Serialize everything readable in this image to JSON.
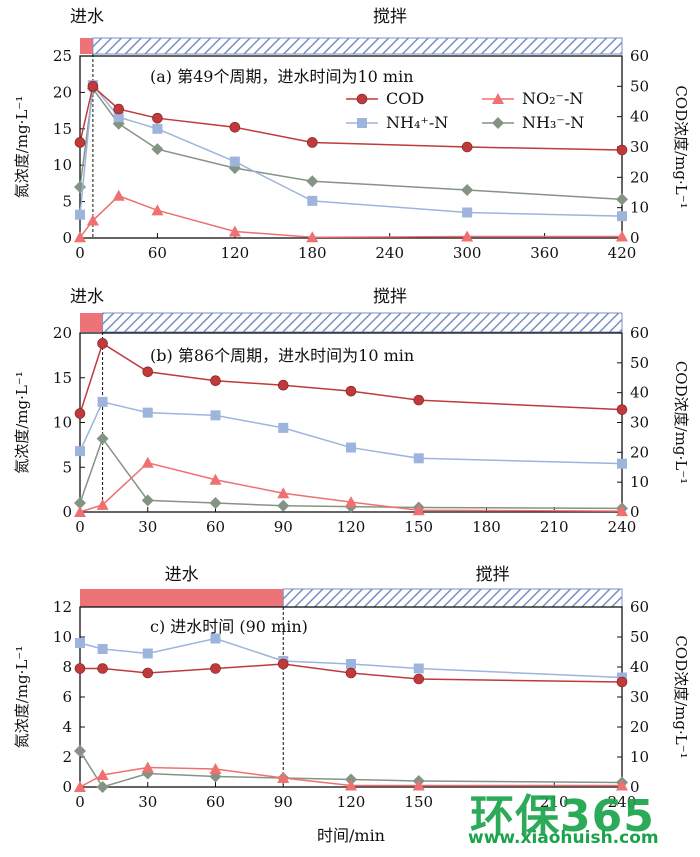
{
  "chart_data": [
    {
      "type": "line",
      "title": "(a) 第49个周期，进水时间为10 min",
      "phase_labels": {
        "fill": "进水",
        "stir": "搅拌"
      },
      "fill_end": 10,
      "xlim": [
        0,
        420
      ],
      "xticks": [
        0,
        60,
        120,
        180,
        240,
        300,
        360,
        420
      ],
      "ylim_left": [
        0,
        25
      ],
      "yticks_left": [
        0,
        5,
        10,
        15,
        20,
        25
      ],
      "ylim_right": [
        0,
        60
      ],
      "yticks_right": [
        0,
        10,
        20,
        30,
        40,
        50,
        60
      ],
      "ylabel_left": "氮浓度/mg·L⁻¹",
      "ylabel_right": "COD浓度/mg·L⁻¹",
      "legend": {
        "placement": "upper-right",
        "items": [
          {
            "series": "COD",
            "label": "COD"
          },
          {
            "series": "NO2",
            "label": "NO₂⁻-N"
          },
          {
            "series": "NH4",
            "label": "NH₄⁺-N"
          },
          {
            "series": "NH3",
            "label": "NH₃⁻-N"
          }
        ]
      },
      "series": [
        {
          "name": "COD",
          "axis": "right",
          "color": "#c0393b",
          "marker": "circle",
          "x": [
            0,
            10,
            30,
            60,
            120,
            180,
            300,
            420
          ],
          "values": [
            31.5,
            50,
            42.5,
            39.5,
            36.5,
            31.5,
            30,
            29
          ]
        },
        {
          "name": "NH₄⁺-N",
          "axis": "left",
          "color": "#9db4dc",
          "marker": "square",
          "x": [
            0,
            10,
            30,
            60,
            120,
            180,
            300,
            420
          ],
          "values": [
            3.2,
            21,
            16.6,
            15,
            10.5,
            5.1,
            3.5,
            3.0
          ]
        },
        {
          "name": "NO₂⁻-N",
          "axis": "left",
          "color": "#ee7070",
          "marker": "triangle",
          "x": [
            0,
            10,
            30,
            60,
            120,
            180,
            300,
            420
          ],
          "values": [
            0.1,
            2.4,
            5.8,
            3.8,
            0.9,
            0.1,
            0.2,
            0.2
          ]
        },
        {
          "name": "NH₃⁻-N",
          "axis": "left",
          "color": "#849484",
          "marker": "diamond",
          "x": [
            0,
            10,
            30,
            60,
            120,
            180,
            300,
            420
          ],
          "values": [
            7.0,
            20.5,
            15.7,
            12.2,
            9.6,
            7.8,
            6.6,
            5.3
          ]
        }
      ]
    },
    {
      "type": "line",
      "title": "(b) 第86个周期，进水时间为10 min",
      "phase_labels": {
        "fill": "进水",
        "stir": "搅拌"
      },
      "fill_end": 10,
      "xlim": [
        0,
        240
      ],
      "xticks": [
        0,
        30,
        60,
        90,
        120,
        150,
        180,
        210,
        240
      ],
      "ylim_left": [
        0,
        20
      ],
      "yticks_left": [
        0,
        5,
        10,
        15,
        20
      ],
      "ylim_right": [
        0,
        60
      ],
      "yticks_right": [
        0,
        10,
        20,
        30,
        40,
        50,
        60
      ],
      "ylabel_left": "氮浓度/mg·L⁻¹",
      "ylabel_right": "COD浓度/mg·L⁻¹",
      "series": [
        {
          "name": "COD",
          "axis": "right",
          "color": "#c0393b",
          "marker": "circle",
          "x": [
            0,
            10,
            30,
            60,
            90,
            120,
            150,
            240
          ],
          "values": [
            33,
            56.5,
            47,
            44,
            42.5,
            40.5,
            37.5,
            34.3
          ]
        },
        {
          "name": "NH₄⁺-N",
          "axis": "left",
          "color": "#9db4dc",
          "marker": "square",
          "x": [
            0,
            10,
            30,
            60,
            90,
            120,
            150,
            240
          ],
          "values": [
            6.8,
            12.3,
            11.1,
            10.8,
            9.4,
            7.2,
            6.0,
            5.4
          ]
        },
        {
          "name": "NO₂⁻-N",
          "axis": "left",
          "color": "#ee7070",
          "marker": "triangle",
          "x": [
            0,
            10,
            30,
            60,
            90,
            120,
            150,
            240
          ],
          "values": [
            0.0,
            0.8,
            5.5,
            3.6,
            2.1,
            1.1,
            0.2,
            0.1
          ]
        },
        {
          "name": "NH₃⁻-N",
          "axis": "left",
          "color": "#849484",
          "marker": "diamond",
          "x": [
            0,
            10,
            30,
            60,
            90,
            120,
            150,
            240
          ],
          "values": [
            1.0,
            8.2,
            1.3,
            1.0,
            0.7,
            0.6,
            0.5,
            0.4
          ]
        }
      ]
    },
    {
      "type": "line",
      "title": "c) 进水时间 (90 min)",
      "phase_labels": {
        "fill": "进水",
        "stir": "搅拌"
      },
      "fill_end": 90,
      "xlim": [
        0,
        240
      ],
      "xticks": [
        0,
        30,
        60,
        90,
        120,
        150,
        210,
        240
      ],
      "xlabel": "时间/min",
      "ylim_left": [
        0,
        12
      ],
      "yticks_left": [
        0,
        2,
        4,
        6,
        8,
        10,
        12
      ],
      "ylim_right": [
        0,
        60
      ],
      "yticks_right": [
        0,
        10,
        20,
        30,
        40,
        50,
        60
      ],
      "ylabel_left": "氮浓度/mg·L⁻¹",
      "ylabel_right": "COD浓度/mg·L⁻¹",
      "series": [
        {
          "name": "COD",
          "axis": "right",
          "color": "#c0393b",
          "marker": "circle",
          "x": [
            0,
            10,
            30,
            60,
            90,
            120,
            150,
            240
          ],
          "values": [
            39.5,
            39.5,
            38,
            39.5,
            41,
            38,
            36,
            35
          ]
        },
        {
          "name": "NH₄⁺-N",
          "axis": "left",
          "color": "#9db4dc",
          "marker": "square",
          "x": [
            0,
            10,
            30,
            60,
            90,
            120,
            150,
            240
          ],
          "values": [
            9.6,
            9.2,
            8.9,
            9.9,
            8.4,
            8.2,
            7.9,
            7.3
          ]
        },
        {
          "name": "NO₂⁻-N",
          "axis": "left",
          "color": "#ee7070",
          "marker": "triangle",
          "x": [
            0,
            10,
            30,
            60,
            90,
            120,
            150,
            240
          ],
          "values": [
            0.0,
            0.8,
            1.3,
            1.2,
            0.6,
            0.1,
            0.1,
            0.1
          ]
        },
        {
          "name": "NH₃⁻-N",
          "axis": "left",
          "color": "#849484",
          "marker": "diamond",
          "x": [
            0,
            10,
            30,
            60,
            90,
            120,
            150,
            240
          ],
          "values": [
            2.4,
            0.0,
            0.9,
            0.7,
            0.6,
            0.5,
            0.4,
            0.3
          ]
        }
      ]
    }
  ],
  "watermark": {
    "brand": "环保365",
    "url": "www.xiaohuish.com",
    "color": "#1aa34a"
  }
}
